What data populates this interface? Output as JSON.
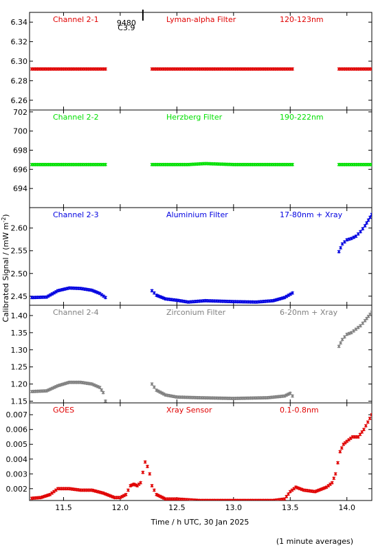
{
  "chart_data": {
    "type": "scatter",
    "xlabel": "Time / h UTC, 30 Jan 2025",
    "ylabel": "Calibrated Signal / (mW m",
    "ylabel_sup": "-2",
    "ylabel_end": ")",
    "xlim": [
      11.2,
      14.22
    ],
    "xticks": [
      "11.5",
      "12.0",
      "12.5",
      "13.0",
      "13.5",
      "14.0"
    ],
    "grid": false,
    "footnote": "(1 minute averages)",
    "annotation": {
      "text_top": "9480",
      "text_bottom": "C3.9",
      "x": 12.2
    },
    "panels": [
      {
        "channel": "Channel 2-1",
        "filter": "Lyman-alpha Filter",
        "band": "120-123nm",
        "color": "#e00000",
        "ylim": [
          6.25,
          6.35
        ],
        "yticks": [
          "6.26",
          "6.28",
          "6.30",
          "6.32",
          "6.34"
        ],
        "segments": [
          {
            "x": [
              11.22,
              11.4,
              11.6,
              11.87
            ],
            "y": [
              6.292,
              6.292,
              6.292,
              6.292
            ]
          },
          {
            "x": [
              12.28,
              12.6,
              13.0,
              13.3,
              13.52
            ],
            "y": [
              6.292,
              6.292,
              6.292,
              6.292,
              6.292
            ]
          },
          {
            "x": [
              13.93,
              14.05,
              14.22
            ],
            "y": [
              6.292,
              6.292,
              6.292
            ]
          }
        ]
      },
      {
        "channel": "Channel 2-2",
        "filter": "Herzberg Filter",
        "band": "190-222nm",
        "color": "#00e000",
        "ylim": [
          692,
          702.2
        ],
        "yticks": [
          "694",
          "696",
          "698",
          "700",
          "702"
        ],
        "segments": [
          {
            "x": [
              11.22,
              11.5,
              11.87
            ],
            "y": [
              696.5,
              696.5,
              696.5
            ]
          },
          {
            "x": [
              12.28,
              12.6,
              12.75,
              13.0,
              13.52
            ],
            "y": [
              696.5,
              696.5,
              696.6,
              696.5,
              696.5
            ]
          },
          {
            "x": [
              13.93,
              14.22
            ],
            "y": [
              696.5,
              696.5
            ]
          }
        ]
      },
      {
        "channel": "Channel 2-3",
        "filter": "Aluminium Filter",
        "band": "17-80nm + Xray",
        "color": "#0000e0",
        "ylim": [
          2.43,
          2.645
        ],
        "yticks": [
          "2.45",
          "2.50",
          "2.55",
          "2.60"
        ],
        "segments": [
          {
            "x": [
              11.22,
              11.35,
              11.45,
              11.55,
              11.65,
              11.75,
              11.82,
              11.87
            ],
            "y": [
              2.447,
              2.448,
              2.462,
              2.468,
              2.467,
              2.463,
              2.456,
              2.447
            ]
          },
          {
            "x": [
              12.28,
              12.32,
              12.4,
              12.5,
              12.6,
              12.75,
              13.0,
              13.2,
              13.35,
              13.45,
              13.52
            ],
            "y": [
              2.462,
              2.452,
              2.444,
              2.441,
              2.437,
              2.44,
              2.438,
              2.437,
              2.44,
              2.447,
              2.457
            ]
          },
          {
            "x": [
              13.93,
              13.96,
              14.0,
              14.04,
              14.08,
              14.12,
              14.16,
              14.22
            ],
            "y": [
              2.548,
              2.565,
              2.574,
              2.577,
              2.582,
              2.592,
              2.605,
              2.63
            ]
          }
        ]
      },
      {
        "channel": "Channel 2-4",
        "filter": "Zirconium Filter",
        "band": "6-20nm + Xray",
        "color": "#808080",
        "ylim": [
          1.145,
          1.43
        ],
        "yticks": [
          "1.15",
          "1.20",
          "1.25",
          "1.30",
          "1.35",
          "1.40"
        ],
        "segments": [
          {
            "x": [
              11.22,
              11.35,
              11.45,
              11.55,
              11.65,
              11.75,
              11.82,
              11.85,
              11.87
            ],
            "y": [
              1.178,
              1.18,
              1.195,
              1.205,
              1.205,
              1.2,
              1.19,
              1.175,
              1.15
            ]
          },
          {
            "x": [
              12.28,
              12.32,
              12.4,
              12.5,
              12.7,
              13.0,
              13.3,
              13.45,
              13.5,
              13.52
            ],
            "y": [
              1.2,
              1.182,
              1.168,
              1.162,
              1.16,
              1.158,
              1.16,
              1.165,
              1.173,
              1.165
            ]
          },
          {
            "x": [
              13.93,
              13.96,
              14.0,
              14.04,
              14.08,
              14.12,
              14.16,
              14.22
            ],
            "y": [
              1.31,
              1.33,
              1.345,
              1.35,
              1.36,
              1.37,
              1.385,
              1.41
            ]
          }
        ]
      },
      {
        "channel": "GOES",
        "filter": "Xray Sensor",
        "band": "0.1-0.8nm",
        "color": "#e00000",
        "ylim": [
          0.0012,
          0.0078
        ],
        "yticks": [
          "0.002",
          "0.003",
          "0.004",
          "0.005",
          "0.006",
          "0.007"
        ],
        "segments": [
          {
            "x": [
              11.22,
              11.3,
              11.38,
              11.45,
              11.55,
              11.65,
              11.75,
              11.85,
              11.95,
              12.0,
              12.05,
              12.09,
              12.12,
              12.15,
              12.18,
              12.2,
              12.22,
              12.24,
              12.26,
              12.28,
              12.32,
              12.4,
              12.5,
              12.7,
              13.0,
              13.2,
              13.35,
              13.45,
              13.5,
              13.55,
              13.62,
              13.72,
              13.82,
              13.87,
              13.9,
              13.94,
              13.97,
              14.0,
              14.05,
              14.1,
              14.15,
              14.22
            ],
            "y": [
              0.00135,
              0.0014,
              0.0016,
              0.002,
              0.002,
              0.0019,
              0.0019,
              0.0017,
              0.0014,
              0.0014,
              0.0016,
              0.0022,
              0.0023,
              0.0022,
              0.0024,
              0.0031,
              0.0038,
              0.0035,
              0.003,
              0.0022,
              0.0016,
              0.0013,
              0.0013,
              0.0012,
              0.0012,
              0.0012,
              0.0012,
              0.0013,
              0.0018,
              0.0021,
              0.0019,
              0.0018,
              0.0021,
              0.0024,
              0.003,
              0.0045,
              0.005,
              0.0052,
              0.0055,
              0.0055,
              0.006,
              0.007
            ]
          }
        ]
      }
    ]
  }
}
